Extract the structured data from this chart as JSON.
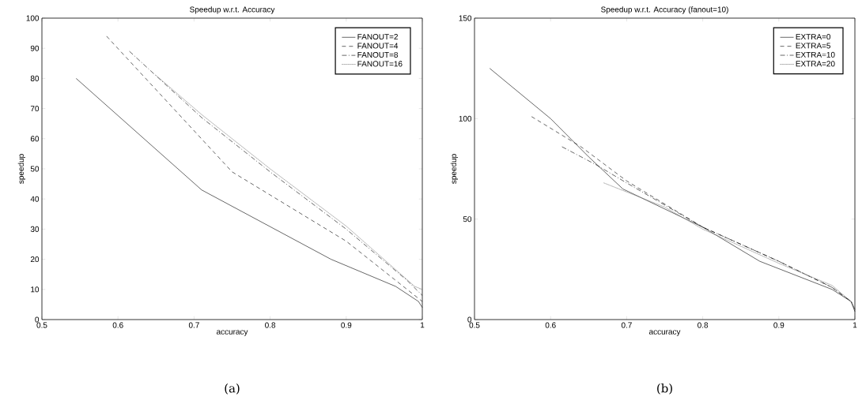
{
  "chart_data": [
    {
      "type": "line",
      "title": "Speedup w.r.t. Accuracy",
      "xlabel": "accuracy",
      "ylabel": "speedup",
      "xlim": [
        0.5,
        1
      ],
      "ylim": [
        0,
        100
      ],
      "xticks": [
        0.5,
        0.6,
        0.7,
        0.8,
        0.9,
        1
      ],
      "yticks": [
        0,
        10,
        20,
        30,
        40,
        50,
        60,
        70,
        80,
        90,
        100
      ],
      "grid": false,
      "legend": "top right",
      "annotations": [
        "(a)"
      ],
      "series": [
        {
          "name": "FANOUT=2",
          "color": "#000000",
          "line_style": "solid",
          "x": [
            0.545,
            0.71,
            0.88,
            0.965,
            0.995,
            1
          ],
          "values": [
            80,
            43,
            20,
            11,
            6,
            4
          ]
        },
        {
          "name": "FANOUT=4",
          "color": "#000000",
          "line_style": "dashed",
          "x": [
            0.585,
            0.75,
            0.9,
            0.98,
            1
          ],
          "values": [
            94,
            49,
            26,
            10,
            6
          ]
        },
        {
          "name": "FANOUT=8",
          "color": "#000000",
          "line_style": "dashdot",
          "x": [
            0.615,
            0.71,
            0.8,
            0.9,
            0.98,
            1
          ],
          "values": [
            89,
            67,
            49,
            30,
            13,
            8
          ]
        },
        {
          "name": "FANOUT=16",
          "color": "#808080",
          "line_style": "dotted",
          "x": [
            0.65,
            0.71,
            0.8,
            0.9,
            0.99,
            1
          ],
          "values": [
            81,
            68,
            50,
            31,
            11,
            10
          ]
        }
      ]
    },
    {
      "type": "line",
      "title": "Speedup w.r.t. Accuracy (fanout=10)",
      "xlabel": "accuracy",
      "ylabel": "speedup",
      "xlim": [
        0.5,
        1
      ],
      "ylim": [
        0,
        150
      ],
      "xticks": [
        0.5,
        0.6,
        0.7,
        0.8,
        0.9,
        1
      ],
      "yticks": [
        0,
        50,
        100,
        150
      ],
      "grid": false,
      "legend": "top right",
      "annotations": [
        "(b)"
      ],
      "series": [
        {
          "name": "EXTRA=0",
          "color": "#000000",
          "line_style": "solid",
          "x": [
            0.52,
            0.6,
            0.65,
            0.695,
            0.8,
            0.875,
            0.97,
            0.995,
            1
          ],
          "values": [
            125,
            100,
            81,
            65,
            46,
            29,
            15,
            9,
            4
          ]
        },
        {
          "name": "EXTRA=5",
          "color": "#000000",
          "line_style": "dashed",
          "x": [
            0.575,
            0.64,
            0.7,
            0.8,
            0.9,
            0.97,
            0.995,
            1
          ],
          "values": [
            101,
            86,
            69,
            46,
            29,
            16,
            9,
            5
          ]
        },
        {
          "name": "EXTRA=10",
          "color": "#000000",
          "line_style": "dashdot",
          "x": [
            0.615,
            0.66,
            0.7,
            0.8,
            0.9,
            0.97,
            0.995,
            1
          ],
          "values": [
            86,
            77,
            68,
            46,
            29,
            16,
            9,
            5
          ]
        },
        {
          "name": "EXTRA=20",
          "color": "#808080",
          "line_style": "dotted",
          "x": [
            0.67,
            0.75,
            0.8,
            0.9,
            0.97,
            0.995,
            1
          ],
          "values": [
            68,
            56,
            45,
            28,
            17,
            9,
            5
          ]
        }
      ]
    }
  ]
}
